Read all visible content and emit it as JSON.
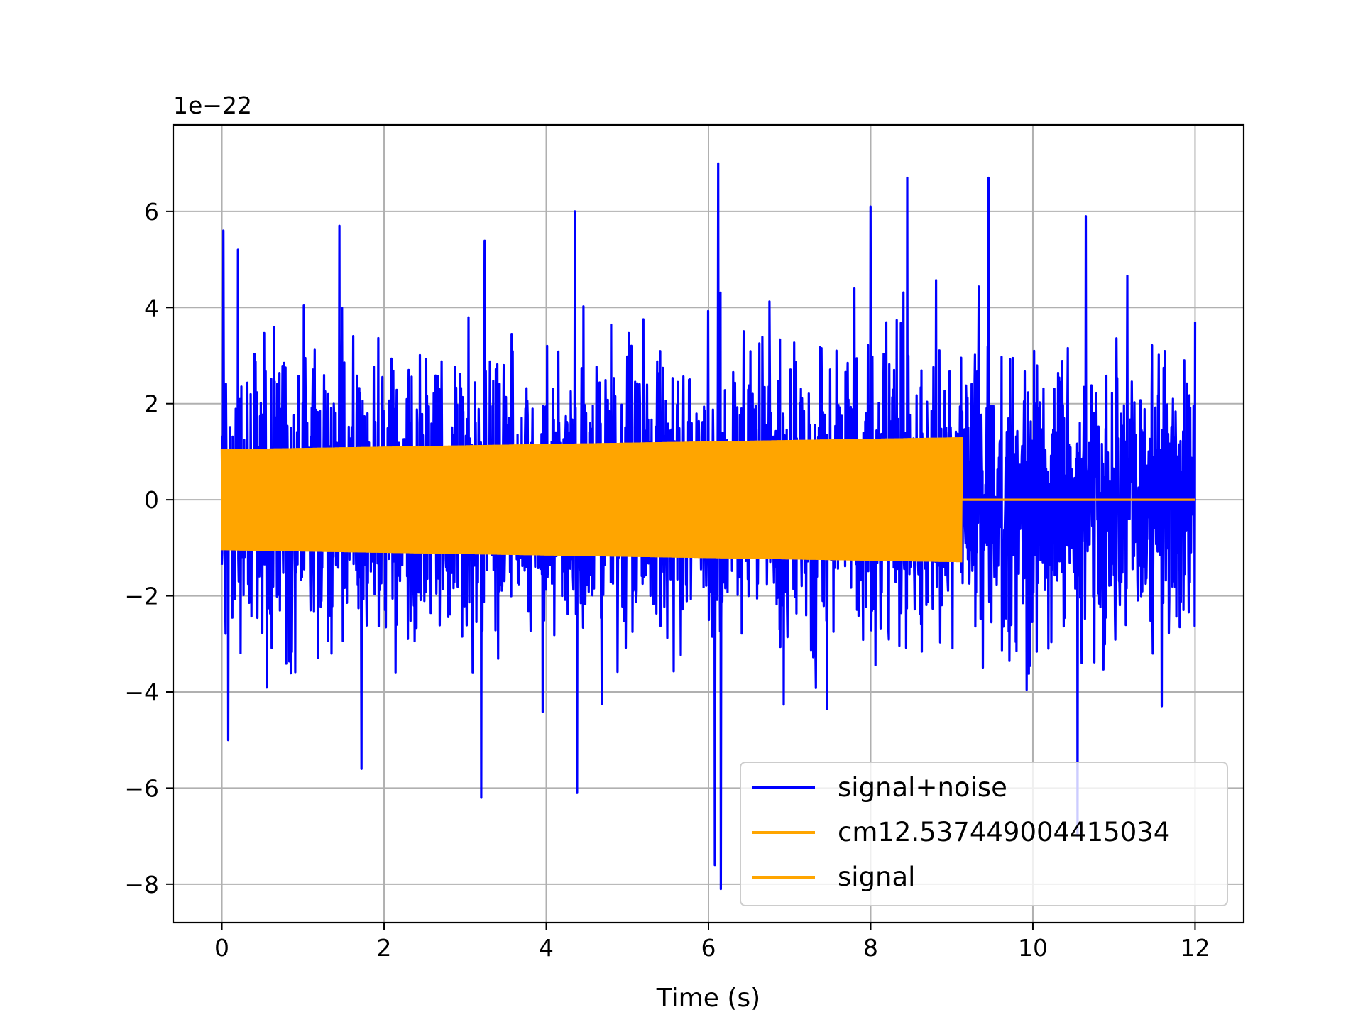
{
  "chart_data": {
    "type": "line",
    "title": "",
    "xlabel": "Time (s)",
    "ylabel": "",
    "y_offset_label": "1e−22",
    "xlim": [
      -0.6,
      12.6
    ],
    "ylim": [
      -8.8,
      7.8
    ],
    "y_scale_factor": 1e-22,
    "xticks": [
      0,
      2,
      4,
      6,
      8,
      10,
      12
    ],
    "yticks": [
      -8,
      -6,
      -4,
      -2,
      0,
      2,
      4,
      6
    ],
    "xtick_labels": [
      "0",
      "2",
      "4",
      "6",
      "8",
      "10",
      "12"
    ],
    "ytick_labels": [
      "−8",
      "−6",
      "−4",
      "−2",
      "0",
      "2",
      "4",
      "6"
    ],
    "grid": true,
    "legend_position": "lower right",
    "series": [
      {
        "name": "signal+noise",
        "color": "#0000ff",
        "x_range": [
          0,
          12
        ],
        "typical_amplitude_range": [
          -4,
          4
        ],
        "notable_points": [
          {
            "x": 0.02,
            "y": 5.6
          },
          {
            "x": 0.08,
            "y": -5.0
          },
          {
            "x": 0.2,
            "y": 5.2
          },
          {
            "x": 1.45,
            "y": 5.7
          },
          {
            "x": 1.72,
            "y": -5.6
          },
          {
            "x": 3.2,
            "y": 6.1
          },
          {
            "x": 3.2,
            "y": -6.2
          },
          {
            "x": 4.35,
            "y": 6.0
          },
          {
            "x": 4.38,
            "y": -6.1
          },
          {
            "x": 6.12,
            "y": 7.0
          },
          {
            "x": 6.08,
            "y": -7.6
          },
          {
            "x": 6.15,
            "y": -8.1
          },
          {
            "x": 8.0,
            "y": 6.1
          },
          {
            "x": 8.45,
            "y": 6.7
          },
          {
            "x": 9.45,
            "y": 6.7
          },
          {
            "x": 10.55,
            "y": -7.0
          },
          {
            "x": 10.65,
            "y": 5.9
          },
          {
            "x": 12.0,
            "y": 3.7
          }
        ]
      },
      {
        "name": "cm12.537449004415034",
        "color": "#ffa500",
        "x_range": [
          0,
          9.12
        ],
        "amplitude_start": 1.05,
        "amplitude_end": 1.3,
        "value_after_end": 0
      },
      {
        "name": "signal",
        "color": "#ffa500",
        "x_range": [
          0,
          12
        ],
        "amplitude_start": 1.05,
        "amplitude_end": 1.3,
        "merger_time": 9.12,
        "value_after_merger": 0
      }
    ]
  }
}
